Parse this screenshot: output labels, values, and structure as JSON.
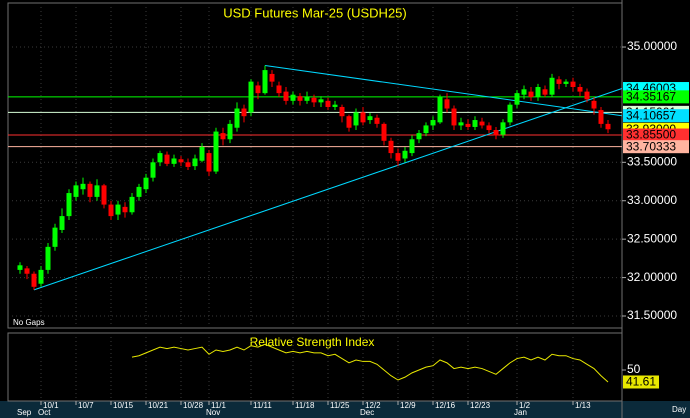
{
  "chart_data": {
    "type": "candlestick",
    "title": "USD Futures Mar-25 (USDH25)",
    "note": "No Gaps",
    "x_unit": "Day",
    "categories": [
      null,
      null,
      null,
      "10/1",
      null,
      null,
      null,
      null,
      "10/7",
      null,
      null,
      null,
      null,
      "10/15",
      null,
      null,
      null,
      null,
      "10/21",
      null,
      null,
      null,
      null,
      "10/28",
      null,
      null,
      null,
      "11/1",
      null,
      null,
      null,
      null,
      null,
      "11/11",
      null,
      null,
      null,
      null,
      null,
      "11/18",
      null,
      null,
      null,
      null,
      "11/25",
      null,
      null,
      null,
      null,
      "12/2",
      null,
      null,
      null,
      null,
      "12/9",
      null,
      null,
      null,
      null,
      "12/16",
      null,
      null,
      null,
      null,
      "12/23",
      null,
      null,
      null,
      null,
      null,
      null,
      "1/2",
      null,
      null,
      null,
      null,
      null,
      null,
      null,
      "1/13",
      null,
      null,
      null,
      null,
      null
    ],
    "months": [
      "Sep",
      null,
      null,
      "Oct",
      null,
      null,
      null,
      null,
      null,
      null,
      null,
      null,
      null,
      null,
      null,
      null,
      null,
      null,
      null,
      null,
      null,
      null,
      null,
      null,
      null,
      null,
      null,
      "Nov",
      null,
      null,
      null,
      null,
      null,
      null,
      null,
      null,
      null,
      null,
      null,
      null,
      null,
      null,
      null,
      null,
      null,
      null,
      null,
      null,
      null,
      "Dec",
      null,
      null,
      null,
      null,
      null,
      null,
      null,
      null,
      null,
      null,
      null,
      null,
      null,
      null,
      null,
      null,
      null,
      null,
      null,
      null,
      null,
      "Jan",
      null,
      null,
      null,
      null,
      null,
      null,
      null,
      null,
      null,
      null,
      null,
      null,
      null
    ],
    "open": [
      32.1,
      32.12,
      32.05,
      31.92,
      32.1,
      32.4,
      32.62,
      32.8,
      33.05,
      33.15,
      33.22,
      33.05,
      33.2,
      32.95,
      32.82,
      32.92,
      32.85,
      33.05,
      33.15,
      33.3,
      33.5,
      33.6,
      33.48,
      33.54,
      33.5,
      33.45,
      33.52,
      33.62,
      33.38,
      33.88,
      33.8,
      33.95,
      34.2,
      34.15,
      34.5,
      34.4,
      34.65,
      34.5,
      34.42,
      34.3,
      34.36,
      34.3,
      34.34,
      34.28,
      34.3,
      34.22,
      34.22,
      34.1,
      33.98,
      34.15,
      34.05,
      34.08,
      34.0,
      33.78,
      33.62,
      33.55,
      33.62,
      33.8,
      33.88,
      33.98,
      34.02,
      34.32,
      34.2,
      33.98,
      34.0,
      33.96,
      34.03,
      33.98,
      33.92,
      33.86,
      34.02,
      34.25,
      34.38,
      34.42,
      34.35,
      34.45,
      34.38,
      34.58,
      34.52,
      34.55,
      34.48,
      34.42,
      34.3,
      34.18,
      34.0
    ],
    "high": [
      32.2,
      32.15,
      32.08,
      32.15,
      32.45,
      32.7,
      32.9,
      33.15,
      33.25,
      33.3,
      33.25,
      33.28,
      33.22,
      33.0,
      33.0,
      32.98,
      33.1,
      33.22,
      33.35,
      33.55,
      33.65,
      33.64,
      33.6,
      33.58,
      33.55,
      33.6,
      33.75,
      33.66,
      33.95,
      33.95,
      34.05,
      34.28,
      34.25,
      34.58,
      34.55,
      34.76,
      34.7,
      34.55,
      34.48,
      34.42,
      34.4,
      34.42,
      34.38,
      34.36,
      34.34,
      34.3,
      34.25,
      34.12,
      34.2,
      34.22,
      34.14,
      34.12,
      34.02,
      33.82,
      33.68,
      33.7,
      33.85,
      33.92,
      34.02,
      34.1,
      34.38,
      34.4,
      34.24,
      34.08,
      34.06,
      34.1,
      34.08,
      34.02,
      33.96,
      34.06,
      34.28,
      34.44,
      34.5,
      34.48,
      34.52,
      34.5,
      34.65,
      34.62,
      34.58,
      34.6,
      34.52,
      34.46,
      34.35,
      34.22,
      34.05
    ],
    "low": [
      32.05,
      31.98,
      31.84,
      31.88,
      32.05,
      32.35,
      32.58,
      32.75,
      33.0,
      33.08,
      32.98,
      33.0,
      32.9,
      32.75,
      32.75,
      32.78,
      32.82,
      33.0,
      33.1,
      33.25,
      33.45,
      33.45,
      33.44,
      33.45,
      33.4,
      33.4,
      33.5,
      33.32,
      33.35,
      33.72,
      33.75,
      33.9,
      34.02,
      34.1,
      34.32,
      34.38,
      34.48,
      34.35,
      34.25,
      34.25,
      34.24,
      34.26,
      34.22,
      34.22,
      34.18,
      34.18,
      34.02,
      33.9,
      33.92,
      33.98,
      34.0,
      33.95,
      33.72,
      33.55,
      33.45,
      33.5,
      33.58,
      33.75,
      33.84,
      33.92,
      34.0,
      34.15,
      33.92,
      33.92,
      33.92,
      33.92,
      33.94,
      33.88,
      33.8,
      33.82,
      33.98,
      34.2,
      34.32,
      34.3,
      34.3,
      34.35,
      34.35,
      34.45,
      34.48,
      34.42,
      34.36,
      34.28,
      34.12,
      33.95,
      33.88
    ],
    "close": [
      32.16,
      32.05,
      31.88,
      32.1,
      32.4,
      32.65,
      32.8,
      33.1,
      33.2,
      33.22,
      33.05,
      33.2,
      32.95,
      32.8,
      32.95,
      32.85,
      33.05,
      33.18,
      33.3,
      33.5,
      33.62,
      33.48,
      33.55,
      33.5,
      33.44,
      33.55,
      33.7,
      33.38,
      33.9,
      33.8,
      34.0,
      34.2,
      34.1,
      34.55,
      34.4,
      34.7,
      34.55,
      34.4,
      34.3,
      34.38,
      34.3,
      34.35,
      34.28,
      34.32,
      34.22,
      34.25,
      34.1,
      33.95,
      34.15,
      34.02,
      34.1,
      34.0,
      33.78,
      33.62,
      33.52,
      33.65,
      33.8,
      33.88,
      33.98,
      34.05,
      34.35,
      34.2,
      33.98,
      34.02,
      33.96,
      34.05,
      33.98,
      33.92,
      33.85,
      34.02,
      34.25,
      34.4,
      34.45,
      34.35,
      34.48,
      34.38,
      34.6,
      34.52,
      34.55,
      34.48,
      34.42,
      34.32,
      34.2,
      34.0,
      33.93
    ],
    "up_color": "#00ff00",
    "down_color": "#ff0000",
    "ylim": [
      31.344,
      35.573
    ],
    "yticks": [
      {
        "value": 35,
        "label": "35.00000"
      },
      {
        "value": 33.5,
        "label": "33.50000"
      },
      {
        "value": 33,
        "label": "33.00000"
      },
      {
        "value": 32.5,
        "label": "32.50000"
      },
      {
        "value": 32,
        "label": "32.00000"
      },
      {
        "value": 31.5,
        "label": "31.50000"
      }
    ],
    "grid": true,
    "price_levels": [
      {
        "value": 34.46003,
        "color": "#00ffff",
        "line": false
      },
      {
        "value": 34.35167,
        "color": "#00ff00",
        "line": true
      },
      {
        "value": 34.15001,
        "color": "#d8ffd8",
        "line": true
      },
      {
        "value": 34.10657,
        "color": "#00e0ff",
        "line": false
      },
      {
        "value": 33.93,
        "label": "33.93000",
        "color": "#ffff00",
        "line": false
      },
      {
        "value": 33.855,
        "label": "33.85500",
        "color": "#ff3030",
        "line": true
      },
      {
        "value": 33.70333,
        "color": "#ffb4a0",
        "line": true
      }
    ],
    "trendlines": [
      {
        "from_candle": 2,
        "anchor": "low",
        "to_level": 0,
        "color": "#00d8ff"
      },
      {
        "from_candle": 35,
        "anchor": "high",
        "to_level": 3,
        "color": "#00d8ff"
      }
    ],
    "indicator": {
      "type": "line",
      "title": "Relative Strength Index",
      "color": "#e8e800",
      "ylim": [
        29,
        75.2
      ],
      "yticks": [
        50
      ],
      "values": [
        null,
        null,
        null,
        null,
        null,
        null,
        null,
        null,
        null,
        null,
        null,
        null,
        null,
        null,
        null,
        null,
        59,
        60,
        62,
        64,
        66,
        65,
        66,
        65,
        64,
        65,
        66,
        61,
        64,
        63,
        64,
        66,
        64,
        67,
        66,
        68,
        66,
        64,
        62,
        63,
        62,
        63,
        62,
        62,
        60,
        61,
        58,
        55,
        57,
        56,
        56,
        54,
        50,
        46,
        43,
        45,
        48,
        50,
        52,
        53,
        57,
        55,
        51,
        52,
        51,
        52,
        51,
        49,
        47,
        51,
        55,
        58,
        59,
        57,
        59,
        57,
        61,
        60,
        60,
        58,
        57,
        54,
        51,
        46,
        41.61
      ]
    }
  }
}
